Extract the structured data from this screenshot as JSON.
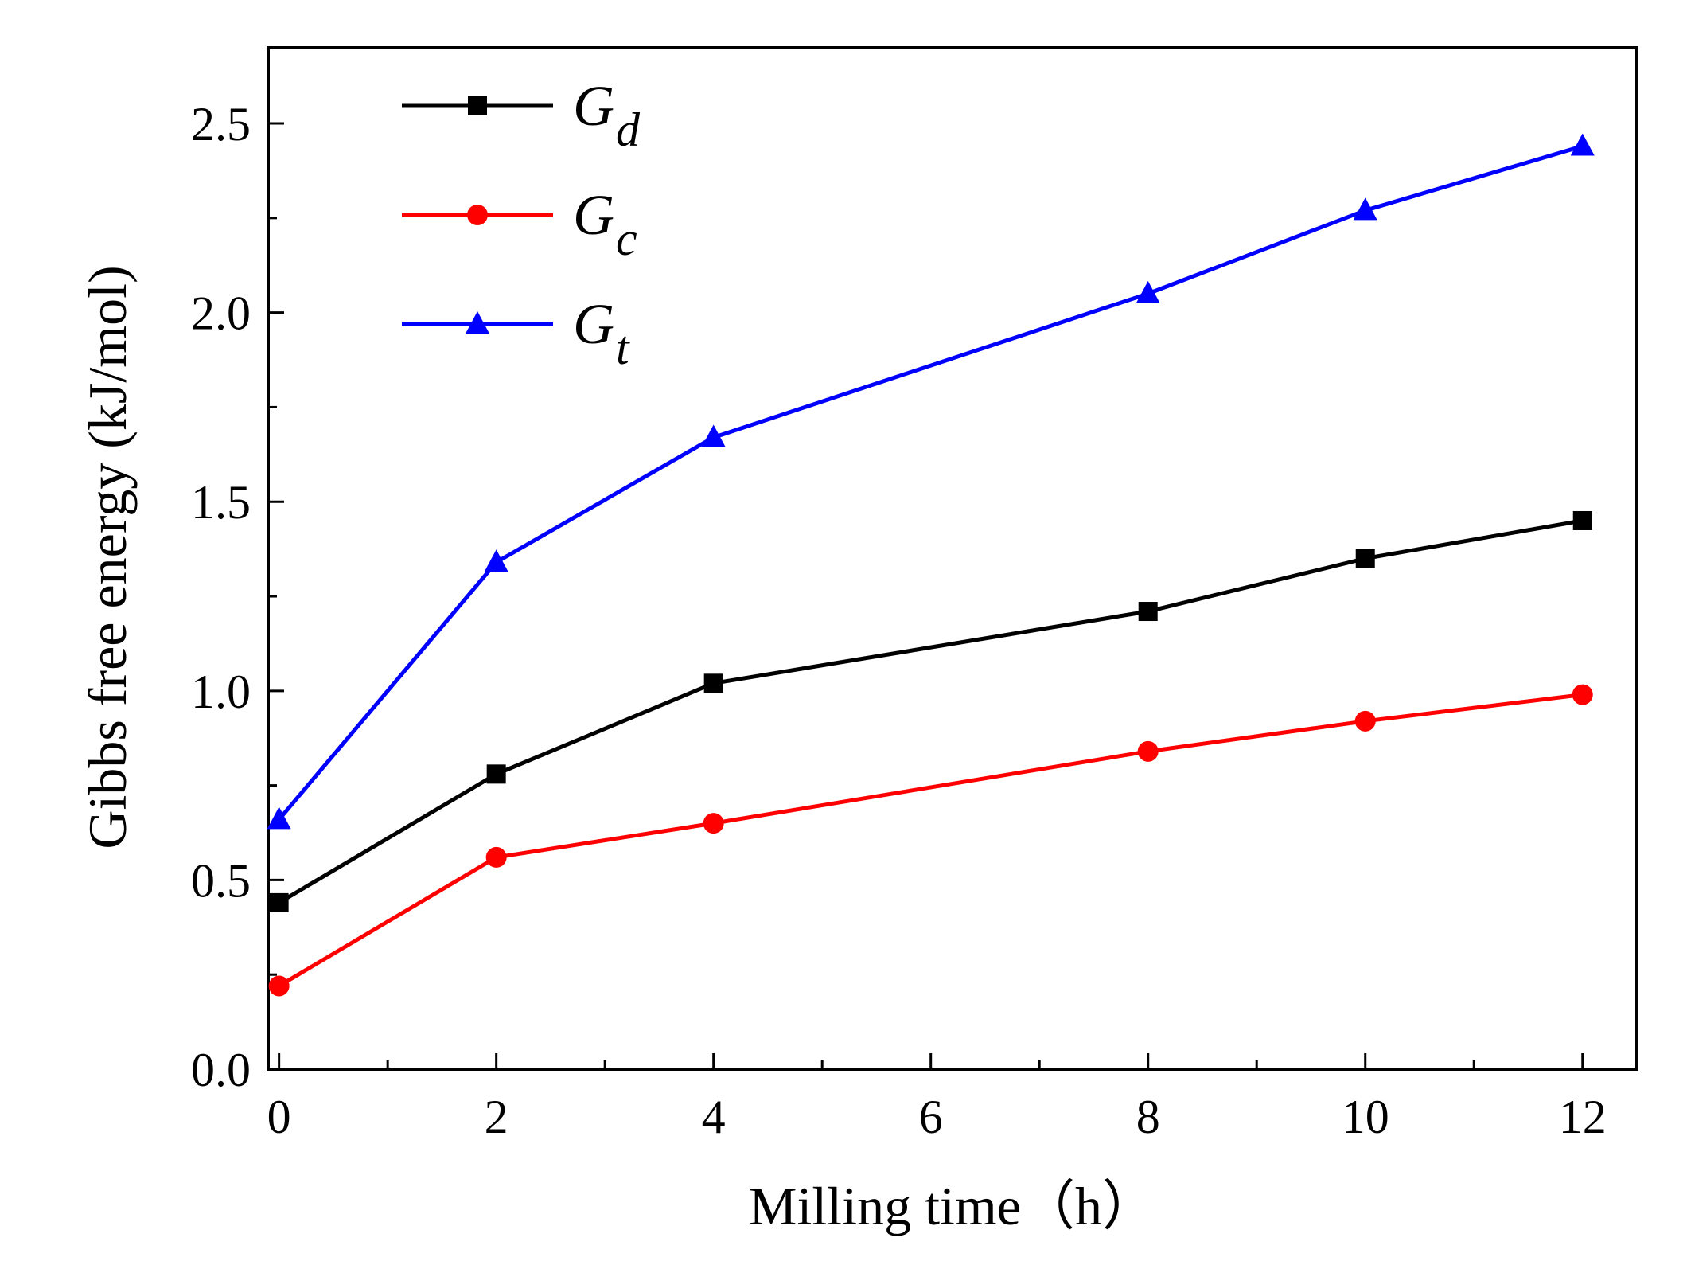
{
  "chart_data": {
    "type": "line",
    "title": "",
    "xlabel": "Milling time（h）",
    "ylabel": "Gibbs free energy (kJ/mol)",
    "xlim": [
      -0.1,
      12.5
    ],
    "ylim": [
      0,
      2.7
    ],
    "xticks": [
      0,
      2,
      4,
      6,
      8,
      10,
      12
    ],
    "xtick_labels": [
      "0",
      "2",
      "4",
      "6",
      "8",
      "10",
      "12"
    ],
    "yticks": [
      0.0,
      0.5,
      1.0,
      1.5,
      2.0,
      2.5
    ],
    "ytick_labels": [
      "0.0",
      "0.5",
      "1.0",
      "1.5",
      "2.0",
      "2.5"
    ],
    "x": [
      0,
      2,
      4,
      8,
      10,
      12
    ],
    "legend_position": "top-left",
    "grid": false,
    "series": [
      {
        "name": "Gd",
        "symbol": "G",
        "subscript": "d",
        "color": "#000000",
        "marker": "square",
        "values": [
          0.44,
          0.78,
          1.02,
          1.21,
          1.35,
          1.45
        ]
      },
      {
        "name": "Gc",
        "symbol": "G",
        "subscript": "c",
        "color": "#ff0000",
        "marker": "circle",
        "values": [
          0.22,
          0.56,
          0.65,
          0.84,
          0.92,
          0.99
        ]
      },
      {
        "name": "Gt",
        "symbol": "G",
        "subscript": "t",
        "color": "#0000ff",
        "marker": "triangle",
        "values": [
          0.66,
          1.34,
          1.67,
          2.05,
          2.27,
          2.44
        ]
      }
    ]
  }
}
